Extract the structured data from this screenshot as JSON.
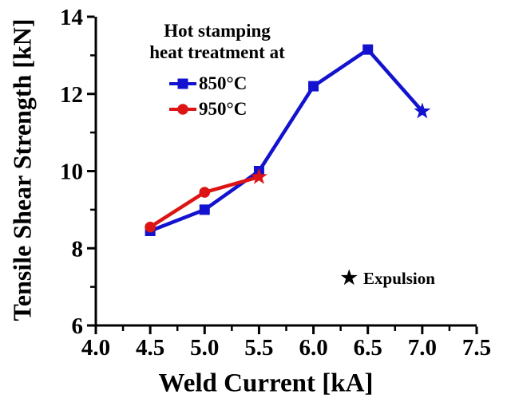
{
  "chart_data": {
    "type": "line",
    "title": "",
    "xlabel": "Weld Current [kA]",
    "ylabel": "Tensile Shear Strength [kN]",
    "xlim": [
      4.0,
      7.5
    ],
    "ylim": [
      6,
      14
    ],
    "grid": false,
    "axes": {
      "axis_color": "#000000",
      "x_tick_labels": [
        "4.0",
        "4.5",
        "5.0",
        "5.5",
        "6.0",
        "6.5",
        "7.0",
        "7.5"
      ],
      "x_minor_ticks": [
        4.25,
        4.75,
        5.25,
        5.75,
        6.25,
        6.75,
        7.25
      ],
      "y_tick_labels": [
        "6",
        "8",
        "10",
        "12",
        "14"
      ],
      "y_minor_ticks": [
        7,
        9,
        11,
        13
      ]
    },
    "legend": {
      "position": "top-left-inside",
      "title_line1": "Hot stamping",
      "title_line2": "heat treatment at"
    },
    "series": [
      {
        "name": "850°C",
        "color": "#1212cf",
        "marker": "square",
        "x": [
          4.5,
          5.0,
          5.5,
          6.0,
          6.5,
          7.0
        ],
        "y": [
          8.45,
          9.0,
          10.0,
          12.2,
          13.15,
          11.55
        ],
        "point_markers": [
          "square",
          "square",
          "square",
          "square",
          "square",
          "star"
        ]
      },
      {
        "name": "950°C",
        "color": "#dd1414",
        "marker": "circle",
        "x": [
          4.5,
          5.0,
          5.5
        ],
        "y": [
          8.55,
          9.45,
          9.85
        ],
        "point_markers": [
          "circle",
          "circle",
          "star"
        ]
      }
    ],
    "annotation": {
      "symbol": "★",
      "text": "Expulsion",
      "x": 6.33,
      "y": 7.15
    }
  }
}
